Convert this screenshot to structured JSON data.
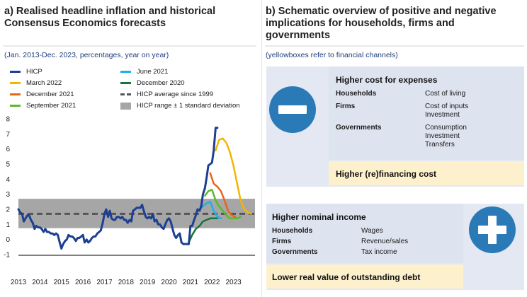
{
  "panel_a": {
    "title": "a) Realised headline inflation and historical Consensus Economics forecasts",
    "subtitle": "(Jan. 2013-Dec. 2023, percentages, year on year)"
  },
  "panel_b": {
    "title": "b) Schematic overview of positive and negative implications for households, firms and governments",
    "subtitle": "(yellowboxes refer to financial channels)",
    "negative": {
      "icon": "minus-circle-icon",
      "heading": "Higher cost for expenses",
      "rows": [
        {
          "label": "Households",
          "value": "Cost of living"
        },
        {
          "label": "Firms",
          "value": "Cost of inputs\nInvestment"
        },
        {
          "label": "Governments",
          "value": "Consumption\nInvestment\nTransfers"
        }
      ],
      "financial": "Higher (re)financing cost"
    },
    "positive": {
      "icon": "plus-circle-icon",
      "heading": "Higher nominal income",
      "rows": [
        {
          "label": "Households",
          "value": "Wages"
        },
        {
          "label": "Firms",
          "value": "Revenue/sales"
        },
        {
          "label": "Governments",
          "value": "Tax income"
        }
      ],
      "financial": "Lower real value of outstanding debt"
    }
  },
  "colors": {
    "accent_blue": "#2a7ab8",
    "box_blue": "#e3e8f2",
    "box_yellow": "#fdf0cc"
  },
  "chart_data": {
    "type": "line",
    "title": "Realised headline inflation and historical Consensus Economics forecasts",
    "subtitle": "(Jan. 2013-Dec. 2023, percentages, year on year)",
    "xlim": [
      2013.0,
      2024.0
    ],
    "ylim": [
      -1,
      8
    ],
    "x_ticks": [
      2013,
      2014,
      2015,
      2016,
      2017,
      2018,
      2019,
      2020,
      2021,
      2022,
      2023
    ],
    "y_ticks": [
      -1,
      0,
      1,
      2,
      3,
      4,
      5,
      6,
      7,
      8
    ],
    "grid": false,
    "legend_position": "top",
    "band": {
      "name": "HICP range ± 1 standard deviation",
      "low": 0.75,
      "high": 2.7,
      "color": "#a6a6a6"
    },
    "average": {
      "name": "HICP average since 1999",
      "value": 1.7,
      "color": "#555555"
    },
    "series": [
      {
        "name": "HICP",
        "color": "#1d3f91",
        "width": 3,
        "x": [
          2013.0,
          2013.08,
          2013.17,
          2013.25,
          2013.33,
          2013.42,
          2013.5,
          2013.58,
          2013.67,
          2013.75,
          2013.83,
          2013.92,
          2014.0,
          2014.08,
          2014.17,
          2014.25,
          2014.33,
          2014.42,
          2014.5,
          2014.58,
          2014.67,
          2014.75,
          2014.83,
          2014.92,
          2015.0,
          2015.08,
          2015.17,
          2015.25,
          2015.33,
          2015.42,
          2015.5,
          2015.58,
          2015.67,
          2015.75,
          2015.83,
          2015.92,
          2016.0,
          2016.08,
          2016.17,
          2016.25,
          2016.33,
          2016.42,
          2016.5,
          2016.58,
          2016.67,
          2016.75,
          2016.83,
          2016.92,
          2017.0,
          2017.08,
          2017.17,
          2017.25,
          2017.33,
          2017.42,
          2017.5,
          2017.58,
          2017.67,
          2017.75,
          2017.83,
          2017.92,
          2018.0,
          2018.08,
          2018.17,
          2018.25,
          2018.33,
          2018.42,
          2018.5,
          2018.58,
          2018.67,
          2018.75,
          2018.83,
          2018.92,
          2019.0,
          2019.08,
          2019.17,
          2019.25,
          2019.33,
          2019.42,
          2019.5,
          2019.58,
          2019.67,
          2019.75,
          2019.83,
          2019.92,
          2020.0,
          2020.08,
          2020.17,
          2020.25,
          2020.33,
          2020.42,
          2020.5,
          2020.58,
          2020.67,
          2020.75,
          2020.83,
          2020.92,
          2021.0,
          2021.08,
          2021.17,
          2021.25,
          2021.33,
          2021.42,
          2021.5,
          2021.58,
          2021.67,
          2021.75,
          2021.83,
          2021.92,
          2022.0,
          2022.08,
          2022.17,
          2022.25
        ],
        "values": [
          2.0,
          1.8,
          1.7,
          1.2,
          1.4,
          1.6,
          1.6,
          1.3,
          1.1,
          0.7,
          0.9,
          0.8,
          0.8,
          0.7,
          0.5,
          0.7,
          0.5,
          0.5,
          0.4,
          0.4,
          0.3,
          0.4,
          0.3,
          -0.2,
          -0.6,
          -0.3,
          -0.1,
          0.0,
          0.3,
          0.2,
          0.2,
          0.1,
          -0.1,
          0.1,
          0.1,
          0.2,
          0.3,
          -0.2,
          0.0,
          -0.2,
          -0.1,
          0.1,
          0.2,
          0.2,
          0.4,
          0.5,
          0.6,
          1.1,
          1.7,
          2.0,
          1.5,
          1.9,
          1.4,
          1.3,
          1.3,
          1.5,
          1.5,
          1.4,
          1.5,
          1.3,
          1.3,
          1.1,
          1.3,
          1.2,
          1.9,
          2.0,
          2.1,
          2.1,
          2.1,
          2.3,
          1.9,
          1.5,
          1.4,
          1.5,
          1.4,
          1.7,
          1.2,
          1.3,
          1.0,
          1.0,
          0.8,
          0.7,
          1.0,
          1.3,
          1.4,
          1.2,
          0.7,
          0.3,
          0.1,
          0.3,
          0.4,
          -0.2,
          -0.3,
          -0.3,
          -0.3,
          -0.3,
          0.9,
          0.9,
          1.3,
          1.6,
          2.0,
          1.9,
          2.2,
          3.0,
          3.4,
          4.1,
          4.9,
          5.0,
          5.1,
          5.9,
          7.4,
          7.4
        ]
      },
      {
        "name": "March 2022",
        "color": "#f5b400",
        "width": 2.5,
        "x": [
          2022.17,
          2022.33,
          2022.5,
          2022.67,
          2022.83,
          2023.0,
          2023.17,
          2023.33,
          2023.5,
          2023.67,
          2023.83
        ],
        "values": [
          5.9,
          6.6,
          6.7,
          6.4,
          5.8,
          4.9,
          3.7,
          2.6,
          2.0,
          1.8,
          1.7
        ]
      },
      {
        "name": "December 2021",
        "color": "#e8641e",
        "width": 2.5,
        "x": [
          2021.92,
          2022.08,
          2022.25,
          2022.42,
          2022.58,
          2022.75,
          2022.92,
          2023.08
        ],
        "values": [
          4.4,
          3.7,
          3.5,
          3.2,
          2.6,
          1.9,
          1.6,
          1.5
        ]
      },
      {
        "name": "September 2021",
        "color": "#5cb82e",
        "width": 2.5,
        "x": [
          2021.67,
          2021.83,
          2022.0,
          2022.17,
          2022.33,
          2022.5,
          2022.67,
          2022.83,
          2023.0,
          2023.17,
          2023.33
        ],
        "values": [
          2.9,
          3.2,
          3.3,
          2.6,
          2.2,
          1.9,
          1.6,
          1.4,
          1.4,
          1.4,
          1.5
        ]
      },
      {
        "name": "June 2021",
        "color": "#1eb1e6",
        "width": 2.5,
        "x": [
          2021.42,
          2021.58,
          2021.75,
          2021.92,
          2022.08,
          2022.25,
          2022.42
        ],
        "values": [
          2.0,
          2.2,
          2.4,
          2.5,
          1.9,
          1.5,
          1.4
        ]
      },
      {
        "name": "December 2020",
        "color": "#17743a",
        "width": 2.5,
        "x": [
          2020.92,
          2021.08,
          2021.25,
          2021.42,
          2021.58,
          2021.75,
          2021.92,
          2022.08,
          2022.25
        ],
        "values": [
          -0.2,
          0.3,
          0.7,
          0.9,
          1.2,
          1.3,
          1.4,
          1.4,
          1.4
        ]
      }
    ]
  }
}
